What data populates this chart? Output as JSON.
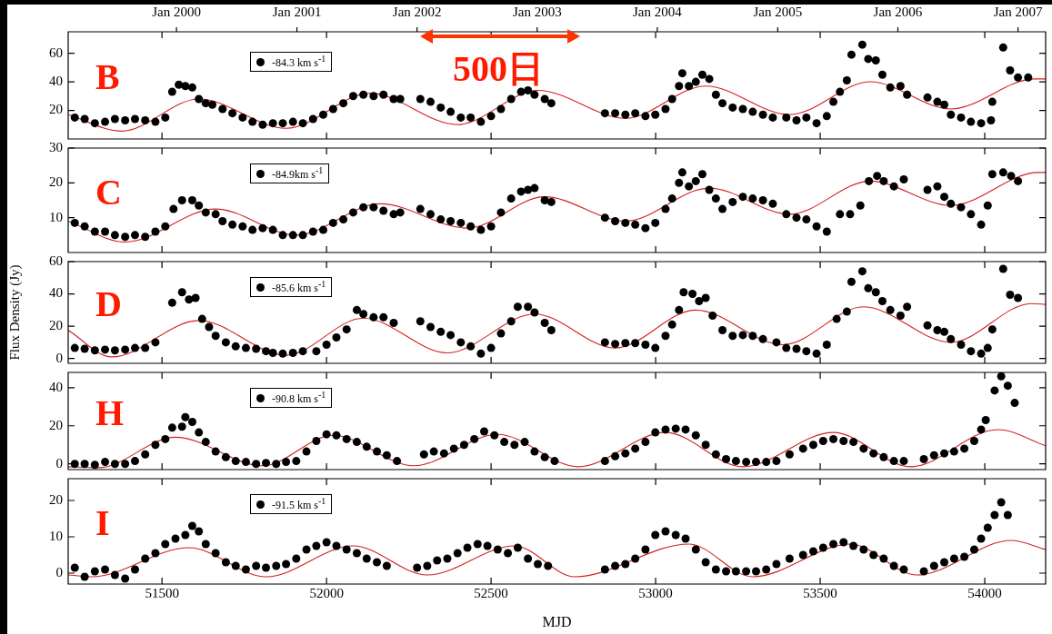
{
  "chart_data": [
    {
      "type": "scatter",
      "xlim": [
        51215,
        54185
      ],
      "xticks": [
        51500,
        52000,
        52500,
        53000,
        53500,
        54000
      ],
      "x2lim": [
        "1999-02-06",
        "2007-03-26"
      ],
      "x2ticks": [
        {
          "value": "2000-01-01",
          "label": "Jan 2000"
        },
        {
          "value": "2001-01-01",
          "label": "Jan 2001"
        },
        {
          "value": "2002-01-01",
          "label": "Jan 2002"
        },
        {
          "value": "2003-01-01",
          "label": "Jan 2003"
        },
        {
          "value": "2004-01-01",
          "label": "Jan 2004"
        },
        {
          "value": "2005-01-01",
          "label": "Jan 2005"
        },
        {
          "value": "2006-01-01",
          "label": "Jan 2006"
        },
        {
          "value": "2007-01-01",
          "label": "Jan 2007"
        }
      ],
      "ylim": [
        0,
        75
      ],
      "yticks": [
        20,
        40,
        60
      ],
      "tick_labels": "y",
      "legend": "top left",
      "annotations": [
        "B",
        "500日"
      ],
      "series": [
        {
          "name": "-84.3 km s$^{-1}$",
          "color": "#000000",
          "marker": "circle",
          "x": [
            51235,
            51265,
            51296,
            51327,
            51357,
            51388,
            51418,
            51449,
            51480,
            51510,
            51531,
            51551,
            51571,
            51592,
            51612,
            51633,
            51653,
            51684,
            51714,
            51745,
            51775,
            51806,
            51837,
            51867,
            51898,
            51928,
            51959,
            51990,
            52020,
            52051,
            52081,
            52112,
            52143,
            52173,
            52204,
            52224,
            52285,
            52316,
            52347,
            52377,
            52408,
            52438,
            52469,
            52500,
            52530,
            52561,
            52591,
            52612,
            52632,
            52663,
            52683,
            52846,
            52877,
            52908,
            52938,
            52969,
            52999,
            53030,
            53050,
            53071,
            53081,
            53101,
            53122,
            53142,
            53163,
            53183,
            53203,
            53234,
            53265,
            53295,
            53326,
            53356,
            53397,
            53428,
            53458,
            53489,
            53520,
            53540,
            53560,
            53581,
            53595,
            53628,
            53646,
            53669,
            53689,
            53713,
            53744,
            53764,
            53826,
            53856,
            53877,
            53897,
            53928,
            53958,
            53989,
            54019,
            54023,
            54056,
            54077,
            54101,
            54132
          ],
          "values": [
            15,
            14,
            11,
            12,
            14,
            13,
            14,
            13,
            12,
            15,
            33,
            38,
            37,
            36,
            28,
            25,
            24,
            21,
            18,
            15,
            12,
            10,
            11,
            11,
            12,
            11,
            14,
            17,
            21,
            25,
            30,
            31,
            30,
            31,
            28,
            28,
            28,
            26,
            22,
            19,
            15,
            15,
            12,
            16,
            21,
            28,
            33,
            34,
            31,
            28,
            25,
            18,
            18,
            17,
            18,
            16,
            17,
            21,
            28,
            37,
            46,
            37,
            40,
            45,
            42,
            31,
            25,
            22,
            21,
            19,
            17,
            15,
            15,
            13,
            15,
            11,
            16,
            26,
            33,
            41,
            59,
            66,
            56,
            55,
            45,
            36,
            37,
            31,
            29,
            26,
            24,
            17,
            15,
            12,
            11,
            13,
            26,
            64,
            48,
            43,
            43
          ]
        },
        {
          "type": "line",
          "color": "#d42020",
          "marker": "none",
          "x": [
            51215,
            51378,
            51612,
            51877,
            52132,
            52398,
            52642,
            52908,
            53152,
            53407,
            53652,
            53897,
            54152,
            54185
          ],
          "values": [
            17,
            5.5,
            28,
            7.5,
            32,
            10,
            34,
            14.5,
            37,
            17,
            40,
            21,
            42,
            42
          ]
        }
      ]
    },
    {
      "type": "scatter",
      "xlim": [
        51215,
        54185
      ],
      "xticks": [
        51500,
        52000,
        52500,
        53000,
        53500,
        54000
      ],
      "ylim": [
        0,
        30
      ],
      "yticks": [
        10,
        20,
        30
      ],
      "tick_labels": "y",
      "legend": "top left",
      "annotations": [
        "C"
      ],
      "series": [
        {
          "name": "-84.9km s$^{-1}$",
          "color": "#000000",
          "marker": "circle",
          "x": [
            51235,
            51265,
            51296,
            51327,
            51357,
            51388,
            51418,
            51449,
            51480,
            51510,
            51535,
            51561,
            51592,
            51612,
            51633,
            51663,
            51684,
            51714,
            51745,
            51775,
            51806,
            51837,
            51867,
            51898,
            51928,
            51959,
            51990,
            52020,
            52051,
            52081,
            52112,
            52143,
            52173,
            52204,
            52224,
            52285,
            52316,
            52347,
            52377,
            52408,
            52438,
            52469,
            52500,
            52530,
            52561,
            52591,
            52612,
            52632,
            52663,
            52683,
            52846,
            52877,
            52908,
            52938,
            52969,
            52999,
            53030,
            53050,
            53071,
            53081,
            53101,
            53122,
            53142,
            53163,
            53183,
            53203,
            53234,
            53265,
            53295,
            53326,
            53356,
            53397,
            53428,
            53458,
            53489,
            53520,
            53560,
            53591,
            53622,
            53648,
            53673,
            53693,
            53724,
            53754,
            53826,
            53856,
            53877,
            53897,
            53928,
            53958,
            53989,
            54009,
            54023,
            54056,
            54080,
            54101
          ],
          "values": [
            8.5,
            7.5,
            6,
            6,
            5,
            4.5,
            5,
            4.5,
            6,
            7.5,
            12.5,
            15,
            15,
            13.5,
            11.5,
            11,
            9,
            8,
            7.5,
            6.5,
            7,
            6.5,
            5,
            5,
            5,
            6,
            6.5,
            8.5,
            9.5,
            11.5,
            13,
            13,
            12,
            11,
            11.5,
            12.5,
            11,
            9.5,
            9,
            8.5,
            7.5,
            6.5,
            7.5,
            11.5,
            15.5,
            17.5,
            18,
            18.5,
            15,
            14.5,
            10,
            9,
            8.5,
            8,
            7,
            8.5,
            12.5,
            15.5,
            20,
            23,
            19,
            20.5,
            22.5,
            18,
            15.5,
            12.5,
            14.5,
            16,
            15.5,
            15,
            14,
            11,
            10,
            9.5,
            7.5,
            6,
            11,
            11,
            13.5,
            20.5,
            22,
            20.5,
            19,
            21,
            18,
            19,
            16,
            14,
            13,
            11,
            8,
            13.5,
            22.5,
            23,
            22,
            20.5
          ]
        },
        {
          "type": "line",
          "color": "#d42020",
          "marker": "none",
          "x": [
            51215,
            51388,
            51663,
            51908,
            52163,
            52428,
            52663,
            52908,
            53163,
            53407,
            53652,
            53897,
            54162,
            54185
          ],
          "values": [
            9,
            3,
            12.5,
            5,
            14,
            7,
            16,
            9,
            18.5,
            11,
            20.5,
            13.5,
            23,
            23
          ]
        }
      ]
    },
    {
      "type": "scatter",
      "xlim": [
        51215,
        54185
      ],
      "xticks": [
        51500,
        52000,
        52500,
        53000,
        53500,
        54000
      ],
      "ylim": [
        -3,
        60
      ],
      "yticks": [
        0,
        20,
        40,
        60
      ],
      "tick_labels": "y",
      "legend": "top left",
      "ylabel": "Flux Density (Jy)",
      "annotations": [
        "D"
      ],
      "series": [
        {
          "name": "-85.6 km s$^{-1}$",
          "color": "#000000",
          "marker": "circle",
          "x": [
            51235,
            51265,
            51296,
            51327,
            51357,
            51388,
            51418,
            51449,
            51480,
            51531,
            51561,
            51582,
            51602,
            51622,
            51643,
            51663,
            51694,
            51724,
            51755,
            51786,
            51816,
            51837,
            51867,
            51898,
            51928,
            51969,
            52000,
            52030,
            52061,
            52092,
            52112,
            52143,
            52173,
            52204,
            52285,
            52316,
            52347,
            52377,
            52408,
            52438,
            52469,
            52500,
            52530,
            52561,
            52581,
            52612,
            52632,
            52663,
            52683,
            52846,
            52877,
            52908,
            52938,
            52969,
            52999,
            53030,
            53050,
            53071,
            53085,
            53112,
            53132,
            53152,
            53173,
            53203,
            53234,
            53265,
            53295,
            53326,
            53367,
            53397,
            53428,
            53458,
            53489,
            53520,
            53550,
            53581,
            53595,
            53628,
            53646,
            53669,
            53689,
            53713,
            53744,
            53764,
            53826,
            53856,
            53877,
            53897,
            53928,
            53958,
            53989,
            54009,
            54023,
            54056,
            54077,
            54101
          ],
          "values": [
            6.5,
            6,
            5,
            5.5,
            5,
            5.5,
            6.5,
            6.5,
            10,
            34.5,
            41,
            36.5,
            37.5,
            24.5,
            19.5,
            14,
            10,
            7.5,
            6.5,
            6,
            4.5,
            3.5,
            3,
            3.5,
            4.5,
            4.5,
            8.5,
            13,
            18,
            30,
            27.5,
            25.5,
            25.5,
            22,
            23,
            19.5,
            16.5,
            14.5,
            10,
            7.5,
            3,
            6.5,
            15.5,
            23,
            32,
            32,
            28.5,
            22,
            17.5,
            10,
            9,
            9.5,
            9.5,
            8.5,
            6.5,
            14,
            21,
            30,
            41,
            40,
            35.5,
            37.5,
            26.5,
            17.5,
            14,
            14.5,
            14,
            12,
            10,
            6.5,
            6,
            4.5,
            3,
            8.5,
            24.5,
            29,
            47.5,
            54,
            43.5,
            41,
            35.5,
            30,
            26.5,
            32,
            20.5,
            17.5,
            16.5,
            12,
            8.5,
            4.5,
            3,
            6.5,
            18,
            55.5,
            39.5,
            37.5
          ]
        },
        {
          "type": "line",
          "color": "#d42020",
          "marker": "none",
          "x": [
            51215,
            51347,
            51612,
            51877,
            52112,
            52367,
            52632,
            52877,
            53122,
            53387,
            53632,
            53897,
            54142,
            54185
          ],
          "values": [
            17.5,
            1,
            23.5,
            2,
            25,
            3.5,
            27.5,
            6.5,
            30,
            8.5,
            32,
            10,
            34,
            33.5
          ]
        }
      ]
    },
    {
      "type": "scatter",
      "xlim": [
        51215,
        54185
      ],
      "xticks": [
        51500,
        52000,
        52500,
        53000,
        53500,
        54000
      ],
      "ylim": [
        -3,
        48
      ],
      "yticks": [
        0,
        20,
        40
      ],
      "tick_labels": "y",
      "legend": "top left",
      "annotations": [
        "H"
      ],
      "series": [
        {
          "name": "-90.8 km s$^{-1}$",
          "color": "#000000",
          "marker": "circle",
          "x": [
            51235,
            51265,
            51296,
            51327,
            51357,
            51388,
            51418,
            51449,
            51480,
            51510,
            51531,
            51561,
            51571,
            51592,
            51612,
            51633,
            51663,
            51694,
            51724,
            51755,
            51786,
            51816,
            51847,
            51877,
            51908,
            51939,
            51969,
            52000,
            52030,
            52061,
            52092,
            52122,
            52153,
            52183,
            52214,
            52296,
            52326,
            52357,
            52387,
            52418,
            52449,
            52479,
            52510,
            52540,
            52571,
            52602,
            52632,
            52663,
            52693,
            52846,
            52877,
            52908,
            52938,
            52969,
            52999,
            53030,
            53061,
            53091,
            53122,
            53152,
            53183,
            53214,
            53244,
            53275,
            53305,
            53336,
            53367,
            53407,
            53448,
            53479,
            53509,
            53540,
            53571,
            53601,
            53632,
            53662,
            53693,
            53724,
            53754,
            53815,
            53846,
            53877,
            53907,
            53938,
            53968,
            53989,
            54003,
            54030,
            54050,
            54070,
            54091
          ],
          "values": [
            0,
            0,
            -0.5,
            1,
            0,
            0,
            1.5,
            5,
            10,
            13,
            19,
            19.5,
            24.5,
            22,
            16.5,
            11.5,
            6.5,
            3.5,
            1.5,
            1,
            0,
            0.5,
            0,
            1,
            1.5,
            6.5,
            12,
            15.5,
            15,
            13,
            11.5,
            9,
            6.5,
            4.5,
            1.5,
            5,
            6.5,
            5.5,
            8,
            10,
            13,
            17,
            15,
            11.5,
            10,
            11.5,
            6.5,
            3.5,
            1.5,
            1.5,
            4,
            5.5,
            8,
            11.5,
            16.5,
            18,
            18.5,
            18,
            15,
            10,
            5,
            2.5,
            1.5,
            1,
            1,
            1,
            1.5,
            5,
            8,
            10,
            12,
            13,
            12,
            11.5,
            8,
            5.5,
            3.5,
            1.5,
            1.5,
            2.5,
            4.5,
            5.5,
            6.5,
            8,
            12,
            18,
            23,
            38.5,
            46,
            41,
            32
          ]
        },
        {
          "type": "line",
          "color": "#d42020",
          "marker": "none",
          "x": [
            51215,
            51306,
            51541,
            51806,
            52020,
            52265,
            52520,
            52765,
            53030,
            53265,
            53540,
            53775,
            54040,
            54185
          ],
          "values": [
            -1.5,
            -2,
            14,
            -1,
            15,
            -1,
            15.5,
            -1.5,
            16.5,
            -1.5,
            16.5,
            -1.5,
            18,
            9.5
          ]
        }
      ]
    },
    {
      "type": "scatter",
      "xlim": [
        51215,
        54185
      ],
      "xticks": [
        51500,
        52000,
        52500,
        53000,
        53500,
        54000
      ],
      "ylim": [
        -3,
        26
      ],
      "yticks": [
        0,
        10,
        20
      ],
      "xlabel": "MJD",
      "legend": "top left",
      "annotations": [
        "I"
      ],
      "series": [
        {
          "name": "-91.5 km s$^{-1}$",
          "color": "#000000",
          "marker": "circle",
          "x": [
            51235,
            51265,
            51296,
            51327,
            51357,
            51388,
            51418,
            51449,
            51480,
            51510,
            51541,
            51571,
            51592,
            51612,
            51633,
            51663,
            51694,
            51724,
            51755,
            51786,
            51816,
            51847,
            51877,
            51908,
            51939,
            51969,
            52000,
            52030,
            52061,
            52092,
            52122,
            52153,
            52183,
            52275,
            52306,
            52336,
            52367,
            52398,
            52428,
            52459,
            52489,
            52520,
            52551,
            52581,
            52612,
            52642,
            52673,
            52846,
            52877,
            52908,
            52938,
            52969,
            52999,
            53030,
            53061,
            53091,
            53122,
            53152,
            53183,
            53214,
            53244,
            53275,
            53305,
            53336,
            53367,
            53407,
            53448,
            53479,
            53509,
            53540,
            53571,
            53601,
            53632,
            53662,
            53693,
            53724,
            53754,
            53815,
            53846,
            53877,
            53907,
            53938,
            53968,
            53989,
            54009,
            54030,
            54050,
            54070
          ],
          "values": [
            1.5,
            -1,
            0.5,
            1,
            -0.5,
            -1.5,
            1,
            4,
            5.5,
            8,
            9.5,
            10.5,
            13,
            11.5,
            8,
            5.5,
            3,
            2,
            1,
            2,
            1.5,
            2,
            2.5,
            4,
            6.5,
            7.5,
            8.5,
            7.5,
            6.5,
            5.5,
            4,
            3,
            2,
            1.5,
            2,
            3.5,
            4,
            5.5,
            7,
            8,
            7.5,
            6.5,
            5.5,
            7,
            4,
            2.5,
            2,
            1,
            2,
            2.5,
            4,
            6.5,
            10.5,
            11.5,
            10.5,
            9.5,
            6.5,
            3,
            1,
            0.5,
            0.5,
            0.5,
            0.5,
            1,
            2.5,
            4,
            5,
            6,
            7,
            8,
            8.5,
            7.5,
            6.5,
            5,
            4,
            2,
            1,
            0.5,
            2,
            3,
            4,
            4.5,
            6.5,
            9.5,
            12.5,
            16,
            19.5,
            16
          ]
        },
        {
          "type": "line",
          "color": "#d42020",
          "marker": "none",
          "x": [
            51215,
            51286,
            51582,
            51816,
            52081,
            52306,
            52571,
            52755,
            53101,
            53295,
            53591,
            53795,
            54081,
            54185
          ],
          "values": [
            -0.5,
            -1,
            7,
            -1,
            7.5,
            -0.5,
            7.5,
            -1,
            8,
            -1,
            8,
            -0.5,
            9,
            6.5
          ]
        }
      ]
    }
  ]
}
